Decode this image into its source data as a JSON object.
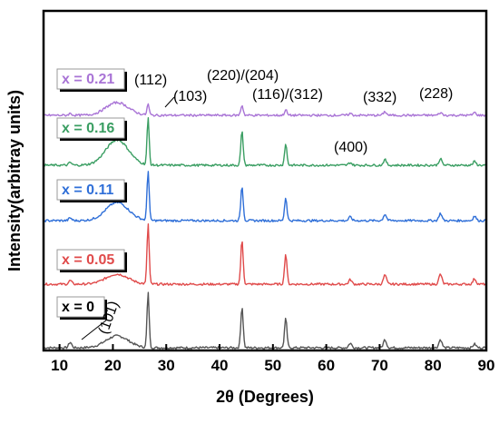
{
  "chart_data": {
    "type": "line",
    "xlabel": "2θ (Degrees)",
    "ylabel": "Intensity(arbitray units)",
    "xlim": [
      7,
      90
    ],
    "x_ticks": [
      "10",
      "20",
      "30",
      "40",
      "50",
      "60",
      "70",
      "80",
      "90"
    ],
    "peaks": [
      {
        "position": 12.0,
        "width": 0.4
      },
      {
        "position": 20.8,
        "width": 3.0
      },
      {
        "position": 26.6,
        "width": 0.28
      },
      {
        "position": 44.2,
        "width": 0.32
      },
      {
        "position": 52.4,
        "width": 0.32
      },
      {
        "position": 64.5,
        "width": 0.4
      },
      {
        "position": 71.0,
        "width": 0.4
      },
      {
        "position": 81.4,
        "width": 0.4
      },
      {
        "position": 87.8,
        "width": 0.4
      }
    ],
    "series": [
      {
        "name": "x = 0",
        "color": "#555555",
        "relative_heights": [
          6,
          13,
          60,
          45,
          32,
          5,
          9,
          9,
          4
        ]
      },
      {
        "name": "x = 0.05",
        "color": "#e04a4a",
        "relative_heights": [
          4,
          11,
          66,
          48,
          33,
          5,
          10,
          11,
          6
        ]
      },
      {
        "name": "x = 0.11",
        "color": "#2f6fd8",
        "relative_heights": [
          3,
          20,
          55,
          38,
          25,
          4,
          7,
          8,
          5
        ]
      },
      {
        "name": "x = 0.16",
        "color": "#3a9e62",
        "relative_heights": [
          3,
          28,
          51,
          37,
          23,
          3,
          6,
          7,
          4
        ]
      },
      {
        "name": "x = 0.21",
        "color": "#a974d6",
        "relative_heights": [
          2,
          14,
          12,
          11,
          6,
          2,
          4,
          3,
          3
        ]
      }
    ],
    "annotations": [
      {
        "text": "(101)"
      },
      {
        "text": "(112)"
      },
      {
        "text": "(103)"
      },
      {
        "text": "(220)/(204)"
      },
      {
        "text": "(116)/(312)"
      },
      {
        "text": "(332)"
      },
      {
        "text": "(228)"
      },
      {
        "text": "(400)"
      }
    ]
  }
}
